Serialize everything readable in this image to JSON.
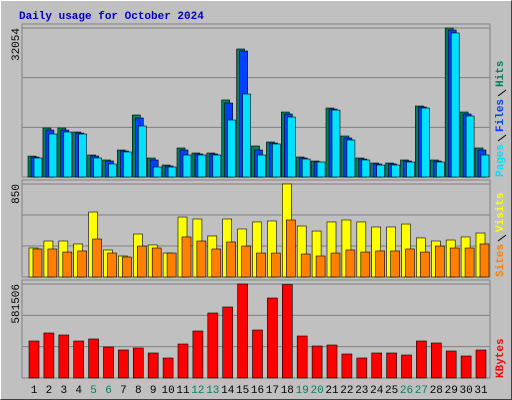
{
  "chart_data": [
    {
      "type": "bar",
      "title": "Daily usage for October 2024",
      "ylim": [
        0,
        32054
      ],
      "yticks": [
        32054
      ],
      "series": [
        {
          "name": "Hits",
          "color": "#00805c",
          "values": [
            4500,
            10540,
            10540,
            9680,
            4730,
            3660,
            5810,
            13340,
            4090,
            2580,
            6240,
            5160,
            5160,
            16570,
            27540,
            6670,
            7530,
            13980,
            4300,
            3440,
            14840,
            8820,
            4090,
            3010,
            3010,
            3660,
            15270,
            3660,
            32054,
            13980,
            6240
          ]
        },
        {
          "name": "Files",
          "color": "#0040ff",
          "values": [
            4300,
            10100,
            10100,
            9460,
            4520,
            3440,
            5590,
            12690,
            3660,
            2370,
            5810,
            4950,
            4950,
            15920,
            27110,
            5810,
            7310,
            13550,
            4090,
            3230,
            14620,
            8390,
            3870,
            2800,
            2800,
            3440,
            15060,
            3440,
            31620,
            13550,
            5810
          ]
        },
        {
          "name": "Pages",
          "color": "#00e0ff",
          "values": [
            4090,
            9250,
            9680,
            9250,
            4090,
            2800,
            5380,
            10970,
            2150,
            2150,
            4730,
            4730,
            4730,
            12260,
            17850,
            4730,
            7100,
            12900,
            3870,
            3230,
            14400,
            7960,
            3660,
            2580,
            2580,
            3230,
            14840,
            3230,
            30980,
            13120,
            4730
          ]
        }
      ]
    },
    {
      "type": "bar",
      "ylim": [
        0,
        850
      ],
      "yticks": [
        850
      ],
      "series": [
        {
          "name": "Visits",
          "color": "#ffff00",
          "values": [
            265,
            329,
            329,
            302,
            594,
            247,
            192,
            393,
            293,
            219,
            548,
            530,
            375,
            530,
            439,
            503,
            512,
            850,
            466,
            420,
            503,
            521,
            503,
            457,
            457,
            484,
            357,
            329,
            338,
            366,
            402
          ]
        },
        {
          "name": "Sites",
          "color": "#ff8000",
          "values": [
            256,
            256,
            228,
            238,
            347,
            219,
            183,
            283,
            265,
            219,
            366,
            329,
            256,
            320,
            283,
            219,
            219,
            521,
            210,
            192,
            219,
            247,
            228,
            238,
            238,
            256,
            228,
            283,
            265,
            265,
            302
          ]
        }
      ]
    },
    {
      "type": "bar",
      "ylim": [
        0,
        581506
      ],
      "yticks": [
        581506
      ],
      "categories": [
        "1",
        "2",
        "3",
        "4",
        "5",
        "6",
        "7",
        "8",
        "9",
        "10",
        "11",
        "12",
        "13",
        "14",
        "15",
        "16",
        "17",
        "18",
        "19",
        "20",
        "21",
        "22",
        "23",
        "24",
        "25",
        "26",
        "27",
        "28",
        "29",
        "30",
        "31"
      ],
      "category_colors": [
        "#000000",
        "#000000",
        "#000000",
        "#000000",
        "#008060",
        "#008060",
        "#000000",
        "#000000",
        "#000000",
        "#000000",
        "#000000",
        "#008060",
        "#008060",
        "#000000",
        "#000000",
        "#000000",
        "#000000",
        "#000000",
        "#008060",
        "#008060",
        "#000000",
        "#000000",
        "#000000",
        "#000000",
        "#000000",
        "#008060",
        "#008060",
        "#000000",
        "#000000",
        "#000000",
        "#000000"
      ],
      "series": [
        {
          "name": "KBytes",
          "color": "#ff0000",
          "values": [
            228900,
            278400,
            266000,
            228900,
            241300,
            191800,
            173200,
            185600,
            154700,
            123700,
            210300,
            290700,
            402100,
            439200,
            581506,
            296900,
            494900,
            578000,
            259800,
            198000,
            204100,
            148500,
            123700,
            154700,
            154700,
            142300,
            228900,
            216500,
            167000,
            136100,
            173200
          ]
        }
      ]
    }
  ]
}
